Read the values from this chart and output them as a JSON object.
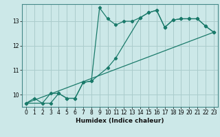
{
  "xlabel": "Humidex (Indice chaleur)",
  "bg_color": "#cce8e8",
  "grid_color": "#aacccc",
  "line_color": "#1a7a6a",
  "xlim": [
    -0.5,
    23.5
  ],
  "ylim": [
    9.5,
    13.7
  ],
  "yticks": [
    10,
    11,
    12,
    13
  ],
  "xticks": [
    0,
    1,
    2,
    3,
    4,
    5,
    6,
    7,
    8,
    9,
    10,
    11,
    12,
    13,
    14,
    15,
    16,
    17,
    18,
    19,
    20,
    21,
    22,
    23
  ],
  "series1_x": [
    0,
    1,
    2,
    3,
    4,
    5,
    6,
    7,
    8,
    9,
    10,
    11,
    12,
    13,
    14,
    15,
    16,
    17,
    18,
    19,
    20,
    21,
    22,
    23
  ],
  "series1_y": [
    9.65,
    9.85,
    9.65,
    10.05,
    10.05,
    9.85,
    9.85,
    10.5,
    10.55,
    13.55,
    13.1,
    12.85,
    13.0,
    13.0,
    13.15,
    13.35,
    13.45,
    12.75,
    13.05,
    13.1,
    13.1,
    13.1,
    12.8,
    12.55
  ],
  "series2_x": [
    0,
    3,
    4,
    5,
    6,
    7,
    8,
    10,
    11,
    14,
    15,
    16,
    17,
    18,
    19,
    20,
    21,
    22,
    23
  ],
  "series2_y": [
    9.65,
    9.65,
    10.05,
    9.85,
    9.85,
    10.5,
    10.55,
    11.1,
    11.5,
    13.15,
    13.35,
    13.45,
    12.75,
    13.05,
    13.1,
    13.1,
    13.1,
    12.8,
    12.55
  ],
  "series3_x": [
    0,
    23
  ],
  "series3_y": [
    9.65,
    12.55
  ]
}
